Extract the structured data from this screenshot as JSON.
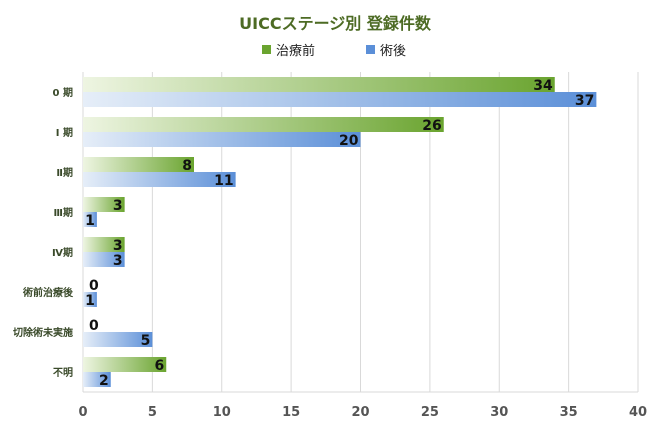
{
  "chart_data": {
    "type": "bar",
    "orientation": "horizontal",
    "title": "UICCステージ別 登録件数",
    "categories": [
      "0 期",
      "Ⅰ 期",
      "Ⅱ期",
      "Ⅲ期",
      "Ⅳ期",
      "術前治療後",
      "切除術未実施",
      "不明"
    ],
    "series": [
      {
        "name": "治療前",
        "values": [
          34,
          26,
          8,
          3,
          3,
          0,
          0,
          6
        ],
        "color": "#6aa42f",
        "color_light": "#eef5e2"
      },
      {
        "name": "術後",
        "values": [
          37,
          20,
          11,
          1,
          3,
          1,
          5,
          2
        ],
        "color": "#5b8fd8",
        "color_light": "#e6eef8"
      }
    ],
    "xlim": [
      0,
      40
    ],
    "xticks": [
      0,
      5,
      10,
      15,
      20,
      25,
      30,
      35,
      40
    ],
    "grid": true,
    "legend_position": "top"
  }
}
